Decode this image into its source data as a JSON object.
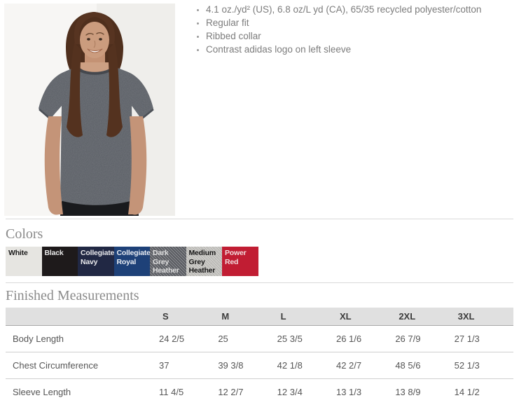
{
  "product": {
    "photo_description": "Model wearing dark grey heather short-sleeve t-shirt",
    "features": [
      "4.1 oz./yd² (US), 6.8 oz/L yd (CA), 65/35 recycled polyester/cotton",
      "Regular fit",
      "Ribbed collar",
      "Contrast adidas logo on left sleeve"
    ]
  },
  "colors_section": {
    "title": "Colors",
    "swatches": [
      {
        "label": "White",
        "bg": "#e6e5e1",
        "text_color": "#1c1c1c",
        "heather": false
      },
      {
        "label": "Black",
        "bg": "#1e1a1b",
        "text_color": "#e9e9e9",
        "heather": false
      },
      {
        "label": "Collegiate Navy",
        "bg": "#212844",
        "text_color": "#e9e9ec",
        "heather": false
      },
      {
        "label": "Collegiate Royal",
        "bg": "#1e4178",
        "text_color": "#e9edf3",
        "heather": false
      },
      {
        "label": "Dark Grey Heather",
        "bg": "#5e6066",
        "text_color": "#e0e0e0",
        "heather": true
      },
      {
        "label": "Medium Grey Heather",
        "bg": "#c7c6c2",
        "text_color": "#161616",
        "heather": true
      },
      {
        "label": "Power Red",
        "bg": "#c11d33",
        "text_color": "#f2dcde",
        "heather": false
      }
    ]
  },
  "measurements_section": {
    "title": "Finished Measurements",
    "columns": [
      "S",
      "M",
      "L",
      "XL",
      "2XL",
      "3XL"
    ],
    "rows": [
      {
        "label": "Body Length",
        "values": [
          "24 2/5",
          "25",
          "25 3/5",
          "26 1/6",
          "26 7/9",
          "27 1/3"
        ]
      },
      {
        "label": "Chest Circumference",
        "values": [
          "37",
          "39 3/8",
          "42 1/8",
          "42 2/7",
          "48 5/6",
          "52 1/3"
        ]
      },
      {
        "label": "Sleeve Length",
        "values": [
          "11 4/5",
          "12 2/7",
          "12 3/4",
          "13 1/3",
          "13 8/9",
          "14 1/2"
        ]
      }
    ]
  }
}
